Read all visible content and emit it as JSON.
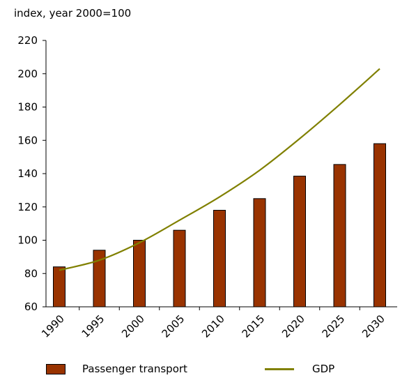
{
  "chart_data": {
    "type": "bar",
    "ylabel": "index, year 2000=100",
    "categories": [
      "1990",
      "1995",
      "2000",
      "2005",
      "2010",
      "2015",
      "2020",
      "2025",
      "2030"
    ],
    "ylim": [
      60,
      220
    ],
    "yticks": [
      60,
      80,
      100,
      120,
      140,
      160,
      180,
      200,
      220
    ],
    "grid": false,
    "legend_position": "bottom",
    "series": [
      {
        "name": "Passenger transport",
        "kind": "bar",
        "color": "#993300",
        "values": [
          84,
          94,
          100,
          106,
          118,
          125,
          138.5,
          145.5,
          158
        ]
      },
      {
        "name": "GDP",
        "kind": "line",
        "color": "#808000",
        "values": [
          82,
          88,
          98.5,
          112,
          126,
          142,
          161,
          181.5,
          203
        ]
      }
    ]
  }
}
